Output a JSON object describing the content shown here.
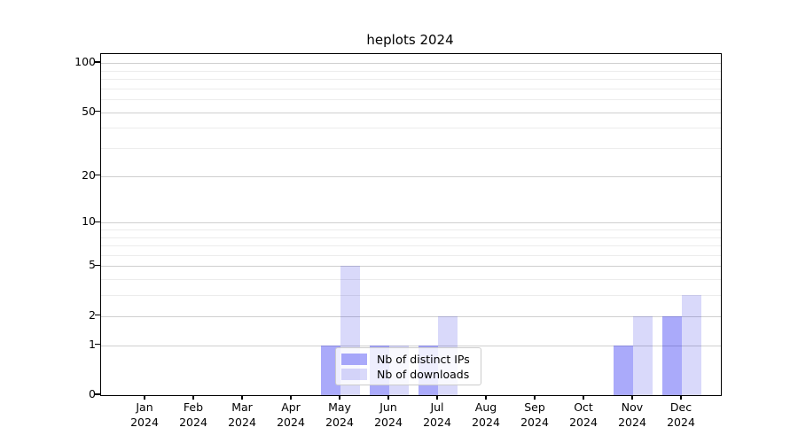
{
  "chart_data": {
    "type": "bar",
    "title": "heplots 2024",
    "categories": [
      "Jan",
      "Feb",
      "Mar",
      "Apr",
      "May",
      "Jun",
      "Jul",
      "Aug",
      "Sep",
      "Oct",
      "Nov",
      "Dec"
    ],
    "category_year": "2024",
    "series": [
      {
        "name": "Nb of distinct IPs",
        "color": "rgba(12,12,241,0.35)",
        "values": [
          0,
          0,
          0,
          0,
          1,
          1,
          1,
          0,
          0,
          0,
          1,
          2
        ]
      },
      {
        "name": "Nb of downloads",
        "color": "rgba(2,2,222,0.15)",
        "values": [
          0,
          0,
          0,
          0,
          5,
          1,
          2,
          0,
          0,
          0,
          2,
          3
        ]
      }
    ],
    "xlabel": "",
    "ylabel": "",
    "y_scale": "log1p",
    "y_major_ticks": [
      0,
      1,
      2,
      5,
      10,
      20,
      50,
      100
    ],
    "y_minor_gridlines": [
      3,
      4,
      6,
      7,
      8,
      9,
      30,
      40,
      60,
      70,
      80,
      90
    ],
    "ylim": [
      0,
      112
    ],
    "grid": "on",
    "legend_position": "lower center"
  }
}
